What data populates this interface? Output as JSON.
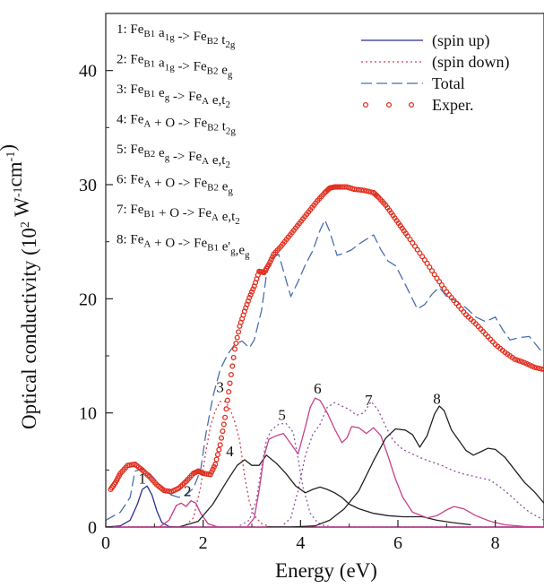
{
  "chart_data": {
    "type": "line",
    "xlabel": "Energy (eV)",
    "ylabel": "Optical conductivity (10",
    "ylabel_sup1": "2",
    "ylabel_mid": " W",
    "ylabel_sup2": "-1",
    "ylabel_end": "cm",
    "ylabel_sup3": "-1",
    "ylabel_close": ")",
    "xlim": [
      0,
      9
    ],
    "ylim": [
      0,
      45
    ],
    "x_ticks": [
      0,
      2,
      4,
      6,
      8
    ],
    "y_ticks": [
      0,
      10,
      20,
      30,
      40
    ],
    "legend_position": "top-right",
    "legend": [
      {
        "label": "(spin up)",
        "style": "solid",
        "color": "#2b2f8f"
      },
      {
        "label": "(spin down)",
        "style": "dotted",
        "color": "#d04050"
      },
      {
        "label": "Total",
        "style": "dashed",
        "color": "#4a6fb0"
      },
      {
        "label": "Exper.",
        "style": "circles",
        "color": "#e03020"
      }
    ],
    "transitions": [
      {
        "num": "1:",
        "parts": [
          [
            "Fe",
            ""
          ],
          [
            "B1",
            "sub"
          ],
          [
            " a",
            ""
          ],
          [
            "1g",
            "sub"
          ],
          [
            " -> Fe",
            ""
          ],
          [
            "B2",
            "sub"
          ],
          [
            " t",
            ""
          ],
          [
            "2g",
            "sub"
          ]
        ]
      },
      {
        "num": "2:",
        "parts": [
          [
            "Fe",
            ""
          ],
          [
            "B1",
            "sub"
          ],
          [
            " a",
            ""
          ],
          [
            "1g",
            "sub"
          ],
          [
            " -> Fe",
            ""
          ],
          [
            "B2",
            "sub"
          ],
          [
            " e",
            ""
          ],
          [
            "g",
            "sub"
          ]
        ]
      },
      {
        "num": "3:",
        "parts": [
          [
            "Fe",
            ""
          ],
          [
            "B1",
            "sub"
          ],
          [
            " e",
            ""
          ],
          [
            "g",
            "sub"
          ],
          [
            " -> Fe",
            ""
          ],
          [
            "A",
            "sub"
          ],
          [
            " e,t",
            ""
          ],
          [
            "2",
            "sub"
          ]
        ]
      },
      {
        "num": "4:",
        "parts": [
          [
            "Fe",
            ""
          ],
          [
            "A",
            "sub"
          ],
          [
            " + O  -> Fe",
            ""
          ],
          [
            "B2",
            "sub"
          ],
          [
            " t",
            ""
          ],
          [
            "2g",
            "sub"
          ]
        ]
      },
      {
        "num": "5:",
        "parts": [
          [
            "Fe",
            ""
          ],
          [
            "B2",
            "sub"
          ],
          [
            " e",
            ""
          ],
          [
            "g",
            "sub"
          ],
          [
            " -> Fe",
            ""
          ],
          [
            "A",
            "sub"
          ],
          [
            " e,t",
            ""
          ],
          [
            "2",
            "sub"
          ]
        ]
      },
      {
        "num": "6:",
        "parts": [
          [
            "Fe",
            ""
          ],
          [
            "A",
            "sub"
          ],
          [
            " + O  -> Fe",
            ""
          ],
          [
            "B2",
            "sub"
          ],
          [
            " e",
            ""
          ],
          [
            "g",
            "sub"
          ]
        ]
      },
      {
        "num": "7:",
        "parts": [
          [
            "Fe",
            ""
          ],
          [
            "B1",
            "sub"
          ],
          [
            " + O -> Fe",
            ""
          ],
          [
            "A",
            "sub"
          ],
          [
            " e,t",
            ""
          ],
          [
            "2",
            "sub"
          ]
        ]
      },
      {
        "num": "8:",
        "parts": [
          [
            "Fe",
            ""
          ],
          [
            "A",
            "sub"
          ],
          [
            " + O -> Fe",
            ""
          ],
          [
            "B1",
            "sub"
          ],
          [
            " e'",
            ""
          ],
          [
            "g",
            "sub"
          ],
          [
            ",e",
            ""
          ],
          [
            "g",
            "sub"
          ]
        ]
      }
    ],
    "peak_labels": [
      {
        "text": "1",
        "x": 0.75,
        "y": 3.8
      },
      {
        "text": "2",
        "x": 1.68,
        "y": 2.7
      },
      {
        "text": "3",
        "x": 2.35,
        "y": 11.8
      },
      {
        "text": "4",
        "x": 2.55,
        "y": 6.2
      },
      {
        "text": "5",
        "x": 3.62,
        "y": 9.4
      },
      {
        "text": "6",
        "x": 4.35,
        "y": 11.7
      },
      {
        "text": "7",
        "x": 5.4,
        "y": 10.7
      },
      {
        "text": "8",
        "x": 6.8,
        "y": 10.8
      }
    ],
    "series": [
      {
        "name": "Exper.",
        "style": "circles",
        "color": "#e03020",
        "x": [
          0.1,
          0.2,
          0.3,
          0.45,
          0.6,
          0.75,
          0.9,
          1.05,
          1.2,
          1.35,
          1.5,
          1.65,
          1.8,
          1.9,
          2.0,
          2.15,
          2.25,
          2.35,
          2.45,
          2.55,
          2.65,
          2.75,
          2.85,
          2.95,
          3.05,
          3.15,
          3.25,
          3.35,
          3.45,
          3.6,
          3.75,
          3.9,
          4.05,
          4.2,
          4.35,
          4.5,
          4.6,
          4.7,
          4.8,
          4.95,
          5.1,
          5.3,
          5.5,
          5.6,
          5.75,
          5.9,
          6.05,
          6.2,
          6.4,
          6.6,
          6.8,
          7.0,
          7.2,
          7.4,
          7.6,
          7.8,
          8.0,
          8.2,
          8.4,
          8.6,
          8.8,
          9.0
        ],
        "y": [
          3.3,
          3.9,
          4.7,
          5.4,
          5.5,
          5.0,
          4.4,
          3.7,
          3.2,
          3.1,
          3.4,
          4.0,
          4.7,
          4.9,
          4.7,
          4.6,
          5.5,
          7.2,
          9.6,
          12.6,
          15.6,
          17.6,
          18.9,
          20.1,
          21.1,
          22.4,
          22.3,
          23.0,
          23.9,
          24.6,
          25.4,
          26.2,
          27.0,
          27.8,
          28.6,
          29.3,
          29.7,
          29.8,
          29.8,
          29.8,
          29.6,
          29.5,
          29.3,
          28.9,
          28.2,
          27.3,
          26.4,
          25.5,
          24.3,
          23.1,
          21.8,
          20.6,
          19.6,
          18.6,
          17.8,
          16.9,
          16.0,
          15.3,
          14.7,
          14.4,
          14.0,
          13.8
        ]
      },
      {
        "name": "Total",
        "style": "dashed",
        "color": "#4a6fb0",
        "x": [
          0.0,
          0.3,
          0.5,
          0.6,
          0.75,
          0.9,
          1.05,
          1.2,
          1.35,
          1.5,
          1.65,
          1.8,
          1.95,
          2.05,
          2.2,
          2.35,
          2.5,
          2.65,
          2.8,
          2.95,
          3.05,
          3.2,
          3.3,
          3.4,
          3.55,
          3.7,
          3.8,
          3.95,
          4.1,
          4.25,
          4.4,
          4.5,
          4.6,
          4.75,
          4.9,
          5.05,
          5.2,
          5.35,
          5.5,
          5.65,
          5.8,
          5.95,
          6.1,
          6.25,
          6.4,
          6.55,
          6.7,
          6.85,
          7.0,
          7.2,
          7.4,
          7.6,
          7.8,
          8.0,
          8.15,
          8.3,
          8.5,
          8.7,
          8.85,
          9.0
        ],
        "y": [
          0.6,
          1.3,
          2.6,
          4.9,
          5.1,
          4.7,
          4.0,
          3.2,
          2.8,
          2.6,
          2.8,
          3.4,
          5.0,
          8.0,
          11.4,
          13.8,
          15.1,
          16.0,
          16.3,
          15.7,
          16.4,
          19.0,
          22.1,
          23.5,
          23.9,
          21.7,
          20.2,
          21.5,
          23.0,
          24.2,
          26.0,
          26.9,
          25.9,
          23.8,
          24.0,
          24.3,
          24.8,
          25.2,
          25.6,
          24.3,
          23.3,
          22.9,
          21.7,
          20.4,
          19.1,
          19.5,
          20.4,
          21.0,
          20.2,
          19.8,
          19.2,
          18.4,
          18.0,
          18.4,
          17.3,
          16.4,
          16.6,
          16.7,
          15.9,
          15.1
        ]
      },
      {
        "name": "1",
        "style": "solid",
        "color": "#2b2f8f",
        "x": [
          0.0,
          0.3,
          0.5,
          0.65,
          0.75,
          0.85,
          0.95,
          1.05,
          1.15,
          1.3,
          1.5,
          9.0
        ],
        "y": [
          0.0,
          0.1,
          0.6,
          2.0,
          3.3,
          3.6,
          2.8,
          1.4,
          0.4,
          0.05,
          0.0,
          0.0
        ]
      },
      {
        "name": "2",
        "style": "solid",
        "color": "#c8408c",
        "x": [
          0.0,
          1.1,
          1.3,
          1.45,
          1.55,
          1.65,
          1.75,
          1.85,
          1.95,
          2.1,
          2.3,
          9.0
        ],
        "y": [
          0.0,
          0.0,
          0.6,
          1.9,
          2.1,
          1.8,
          2.3,
          2.1,
          1.2,
          0.3,
          0.0,
          0.0
        ]
      },
      {
        "name": "2-dotted",
        "style": "dotted",
        "color": "#d04050",
        "x": [
          0.0,
          1.1,
          1.3,
          1.45,
          1.55,
          1.65,
          1.75,
          1.85,
          1.95,
          2.1,
          2.3,
          9.0
        ],
        "y": [
          0.0,
          0.0,
          0.6,
          1.9,
          2.1,
          1.8,
          2.3,
          2.1,
          1.2,
          0.3,
          0.0,
          0.0
        ]
      },
      {
        "name": "3",
        "style": "dotted",
        "color": "#d04050",
        "x": [
          0.0,
          1.6,
          1.8,
          1.95,
          2.05,
          2.15,
          2.25,
          2.35,
          2.45,
          2.55,
          2.65,
          2.75,
          2.85,
          2.95,
          3.05,
          3.2,
          3.4,
          9.0
        ],
        "y": [
          0.0,
          0.0,
          0.8,
          3.5,
          6.5,
          8.8,
          10.2,
          11.0,
          11.0,
          10.4,
          9.2,
          7.6,
          4.5,
          2.2,
          1.0,
          0.3,
          0.0,
          0.0
        ]
      },
      {
        "name": "4",
        "style": "solid",
        "color": "#222222",
        "x": [
          0.5,
          1.0,
          1.5,
          1.9,
          2.2,
          2.5,
          2.7,
          2.85,
          3.0,
          3.15,
          3.3,
          3.5,
          3.7,
          3.9,
          4.1,
          4.25,
          4.4,
          4.55,
          4.7,
          4.85,
          5.0,
          5.2,
          5.5,
          5.8,
          6.1,
          6.5,
          6.8,
          7.1,
          7.5
        ],
        "y": [
          0.0,
          0.0,
          0.0,
          0.5,
          2.0,
          4.1,
          5.4,
          5.9,
          5.4,
          5.4,
          6.3,
          5.6,
          4.7,
          3.6,
          3.0,
          3.3,
          3.5,
          3.3,
          3.0,
          2.6,
          2.0,
          1.6,
          1.2,
          1.0,
          0.9,
          0.9,
          0.6,
          0.4,
          0.2
        ]
      },
      {
        "name": "5",
        "style": "dotted",
        "color": "#8860a8",
        "x": [
          0.0,
          2.7,
          2.95,
          3.1,
          3.2,
          3.3,
          3.4,
          3.55,
          3.7,
          3.85,
          3.95,
          4.05,
          4.2,
          4.35,
          4.5,
          4.7,
          9.0
        ],
        "y": [
          0.0,
          0.0,
          0.6,
          2.5,
          5.3,
          7.6,
          8.5,
          9.0,
          9.1,
          8.3,
          6.0,
          3.5,
          1.2,
          0.4,
          0.1,
          0.0,
          0.0
        ]
      },
      {
        "name": "6",
        "style": "solid",
        "color": "#c8408c",
        "x": [
          0.0,
          2.9,
          3.05,
          3.15,
          3.25,
          3.35,
          3.5,
          3.65,
          3.8,
          3.95,
          4.1,
          4.2,
          4.3,
          4.4,
          4.55,
          4.7,
          4.85,
          4.95,
          5.05,
          5.2,
          5.35,
          5.5,
          5.65,
          5.8,
          5.95,
          6.1,
          6.3,
          6.6,
          6.8,
          7.0,
          7.15,
          7.35,
          7.6,
          7.9,
          8.2,
          8.6,
          9.0
        ],
        "y": [
          0.0,
          0.0,
          0.8,
          3.2,
          6.2,
          7.7,
          8.0,
          8.2,
          7.3,
          6.4,
          8.8,
          10.5,
          11.3,
          11.1,
          10.0,
          8.6,
          7.4,
          7.8,
          8.8,
          8.7,
          8.2,
          8.7,
          8.0,
          6.2,
          4.2,
          2.6,
          1.3,
          0.8,
          1.0,
          1.5,
          1.8,
          1.6,
          1.0,
          0.5,
          0.2,
          0.05,
          0.0
        ]
      },
      {
        "name": "7",
        "style": "dotted",
        "color": "#9050a0",
        "x": [
          0.0,
          3.6,
          3.8,
          3.95,
          4.1,
          4.25,
          4.4,
          4.55,
          4.7,
          4.85,
          5.0,
          5.15,
          5.3,
          5.45,
          5.6,
          5.75,
          5.9,
          6.1,
          6.3,
          6.5,
          6.7,
          6.9,
          7.1,
          7.3,
          7.5,
          7.7,
          7.9,
          8.1,
          8.3,
          8.5,
          8.7,
          9.0
        ],
        "y": [
          0.0,
          0.0,
          0.8,
          3.2,
          6.3,
          8.1,
          9.0,
          10.5,
          10.9,
          10.6,
          10.3,
          9.8,
          10.0,
          11.0,
          10.2,
          8.8,
          7.6,
          6.8,
          6.4,
          6.0,
          5.7,
          5.4,
          5.0,
          4.7,
          4.5,
          4.3,
          4.1,
          3.5,
          2.8,
          2.0,
          1.3,
          0.6
        ]
      },
      {
        "name": "8",
        "style": "solid",
        "color": "#222222",
        "x": [
          3.3,
          3.8,
          4.3,
          4.6,
          4.9,
          5.2,
          5.5,
          5.75,
          5.95,
          6.15,
          6.3,
          6.45,
          6.6,
          6.75,
          6.85,
          6.95,
          7.1,
          7.25,
          7.4,
          7.55,
          7.7,
          7.85,
          8.0,
          8.2,
          8.4,
          8.6,
          8.8,
          9.0
        ],
        "y": [
          0.0,
          0.0,
          0.1,
          0.6,
          1.6,
          3.2,
          5.8,
          7.8,
          8.6,
          8.5,
          8.1,
          7.0,
          8.0,
          9.9,
          10.6,
          10.2,
          8.5,
          7.6,
          6.7,
          6.3,
          6.6,
          6.9,
          6.8,
          6.1,
          5.0,
          3.9,
          3.1,
          2.1
        ]
      }
    ]
  }
}
